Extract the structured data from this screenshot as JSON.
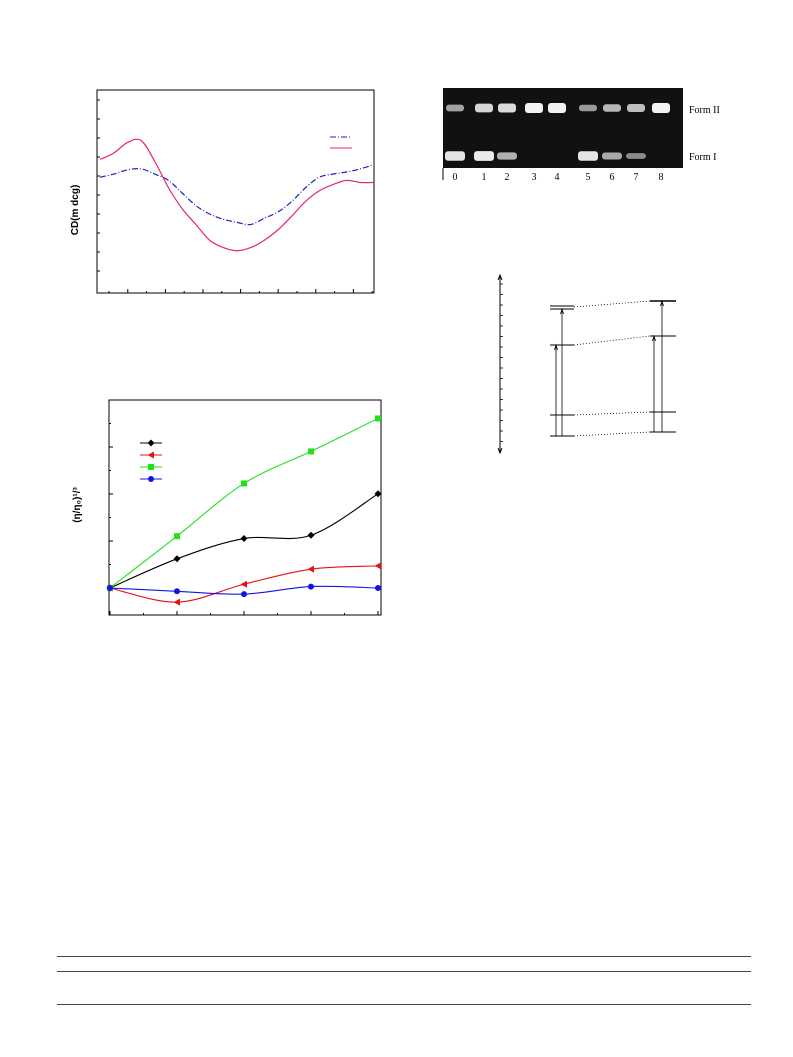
{
  "colors": {
    "cd_solid": "#e8247a",
    "cd_dashed": "#1a22c8",
    "black": "#000000",
    "red": "#e81010",
    "green": "#22e01a",
    "blue": "#1414e0",
    "gel_bg": "#111111",
    "band": "#f2f2f2"
  },
  "chart_data": [
    {
      "type": "line",
      "ylabel": "CD(m dcg)",
      "legend_position": "top-right",
      "series": [
        {
          "style": "dash-dot",
          "color": "#1a22c8",
          "values": [
            0.55,
            0.58,
            0.62,
            0.63,
            0.58,
            0.52,
            0.4,
            0.28,
            0.2,
            0.15,
            0.12,
            0.1,
            0.16,
            0.22,
            0.32,
            0.45,
            0.55,
            0.58,
            0.6,
            0.63,
            0.67
          ]
        },
        {
          "style": "solid",
          "color": "#e8247a",
          "values": [
            0.72,
            0.78,
            0.88,
            0.9,
            0.7,
            0.45,
            0.25,
            0.1,
            -0.05,
            -0.12,
            -0.15,
            -0.12,
            -0.05,
            0.05,
            0.18,
            0.32,
            0.42,
            0.48,
            0.52,
            0.5,
            0.5
          ]
        }
      ]
    },
    {
      "type": "line",
      "ylabel": "(η/η₀)¹/³",
      "legend_position": "top-left",
      "x": [
        0,
        1,
        2,
        3,
        4
      ],
      "series": [
        {
          "marker": "diamond",
          "color": "#000000",
          "values": [
            1.0,
            1.062,
            1.105,
            1.112,
            1.2
          ]
        },
        {
          "marker": "triangle-left",
          "color": "#e81010",
          "values": [
            1.0,
            0.97,
            1.008,
            1.04,
            1.047
          ]
        },
        {
          "marker": "square",
          "color": "#22e01a",
          "values": [
            1.0,
            1.11,
            1.222,
            1.29,
            1.36
          ]
        },
        {
          "marker": "circle",
          "color": "#1414e0",
          "values": [
            1.0,
            0.993,
            0.987,
            1.003,
            1.0
          ]
        }
      ]
    }
  ],
  "gel": {
    "lanes": [
      "0",
      "1",
      "2",
      "3",
      "4",
      "5",
      "6",
      "7",
      "8"
    ],
    "form_ii_label": "Form II",
    "form_i_label": "Form I",
    "form_ii_intensity": [
      0.45,
      0.8,
      0.85,
      1.0,
      1.0,
      0.4,
      0.6,
      0.65,
      1.0
    ],
    "form_i_intensity": [
      0.9,
      0.95,
      0.55,
      0.0,
      0.0,
      0.9,
      0.5,
      0.3,
      0.0
    ]
  }
}
